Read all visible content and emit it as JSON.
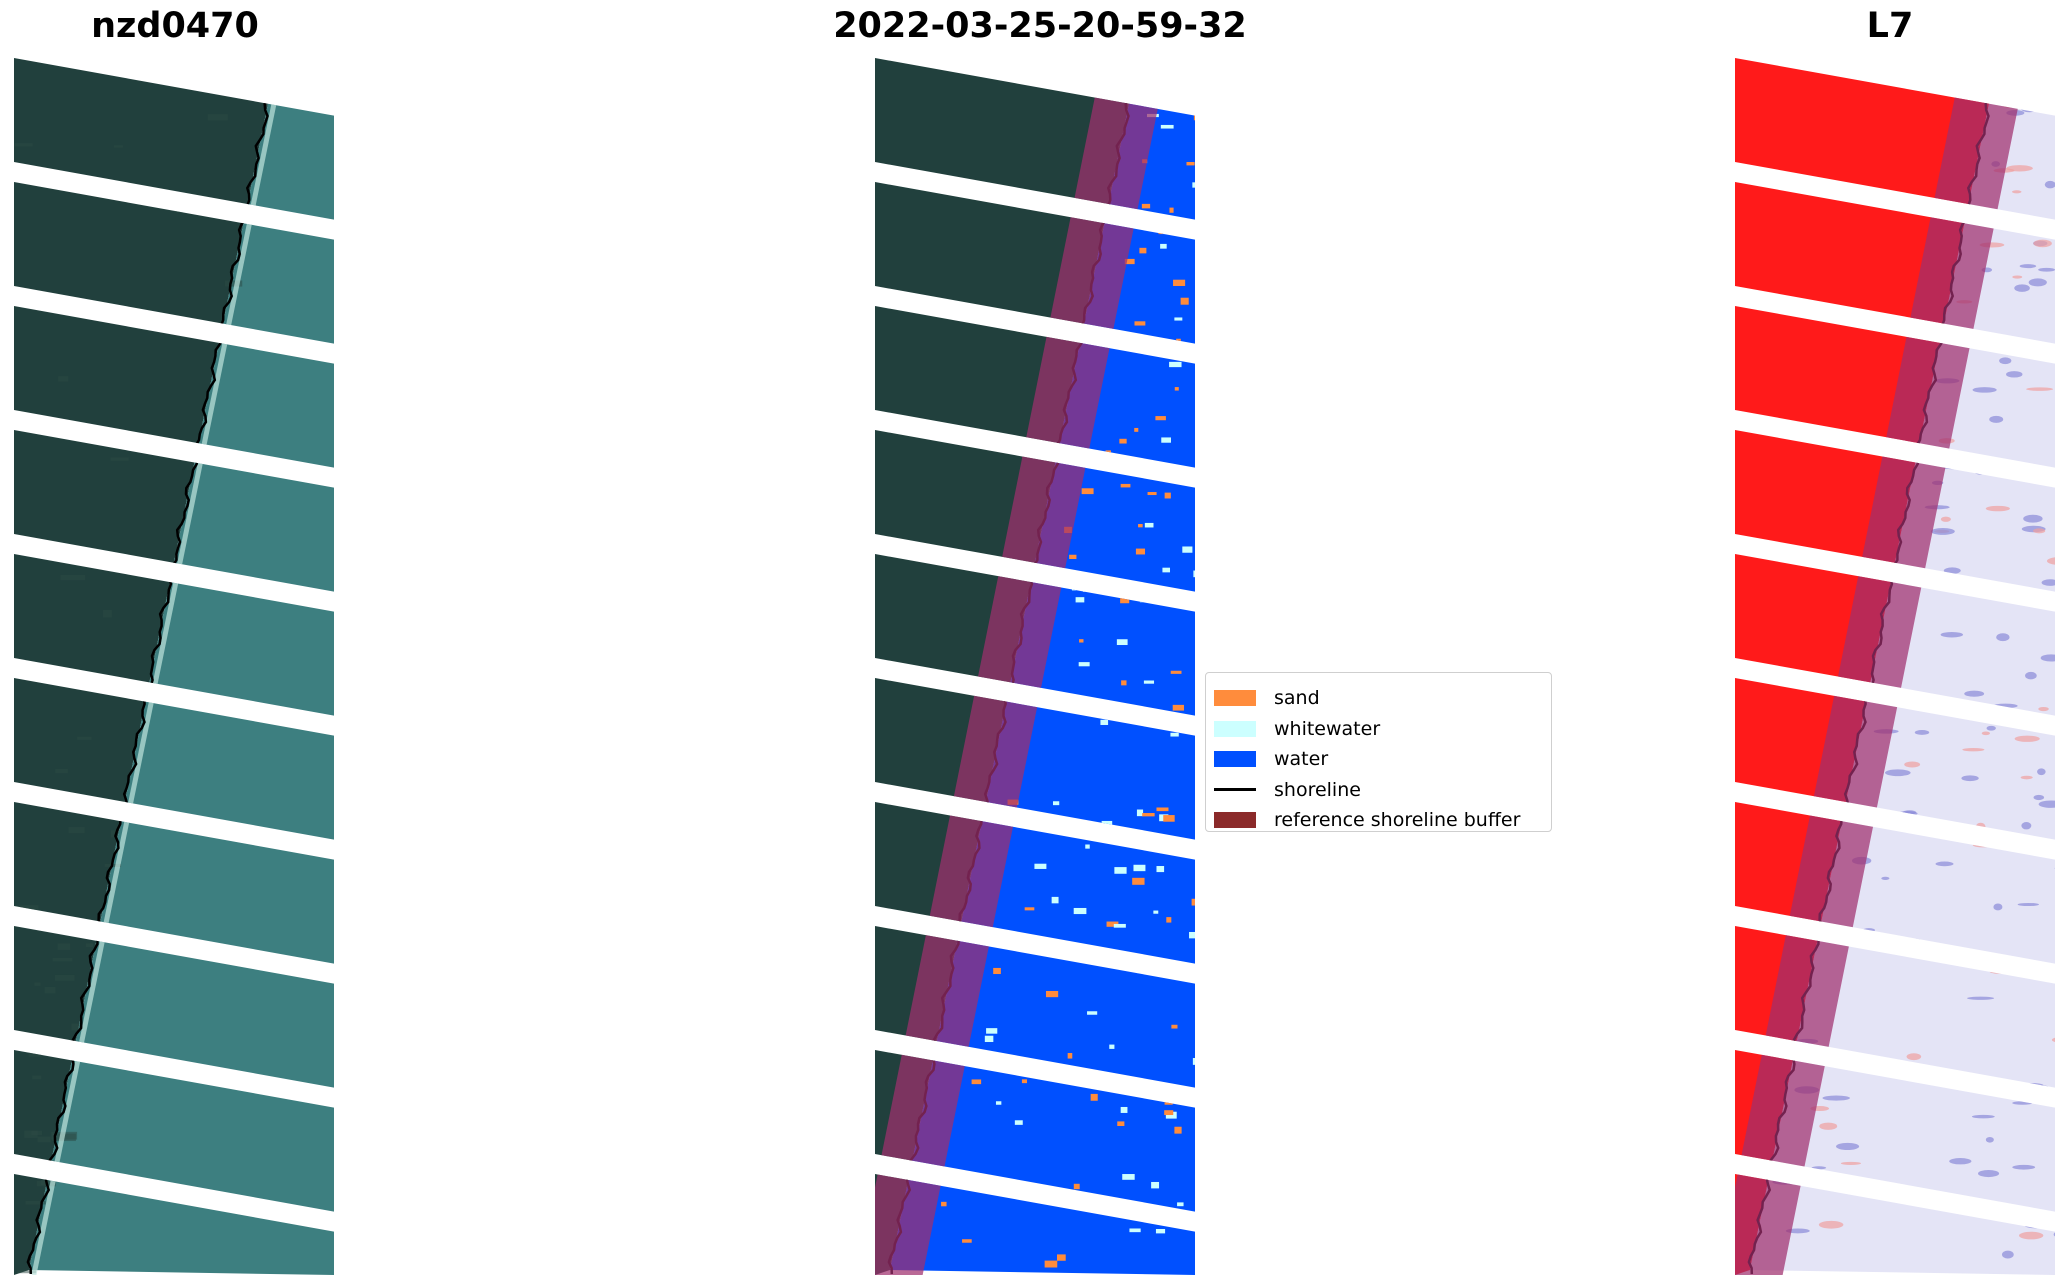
{
  "titles": {
    "left": "nzd0470",
    "center": "2022-03-25-20-59-32",
    "right": "L7"
  },
  "legend": {
    "items": [
      {
        "label": "sand",
        "color": "#ff8c3c",
        "kind": "patch"
      },
      {
        "label": "whitewater",
        "color": "#ccffff",
        "kind": "patch"
      },
      {
        "label": "water",
        "color": "#0050ff",
        "kind": "patch"
      },
      {
        "label": "shoreline",
        "color": "#000000",
        "kind": "line"
      },
      {
        "label": "reference shoreline buffer",
        "color": "#8b2a2a",
        "kind": "patch"
      }
    ]
  },
  "colors": {
    "land_rgb": "#21403d",
    "water_rgb": "#3d7f80",
    "water_class": "#0050ff",
    "sand": "#ff8c3c",
    "whitewater": "#ccffff",
    "buffer_overlay": "#a0306e",
    "ndwi_land": "#ff1a1a",
    "ndwi_water": "#e4e4f6"
  }
}
